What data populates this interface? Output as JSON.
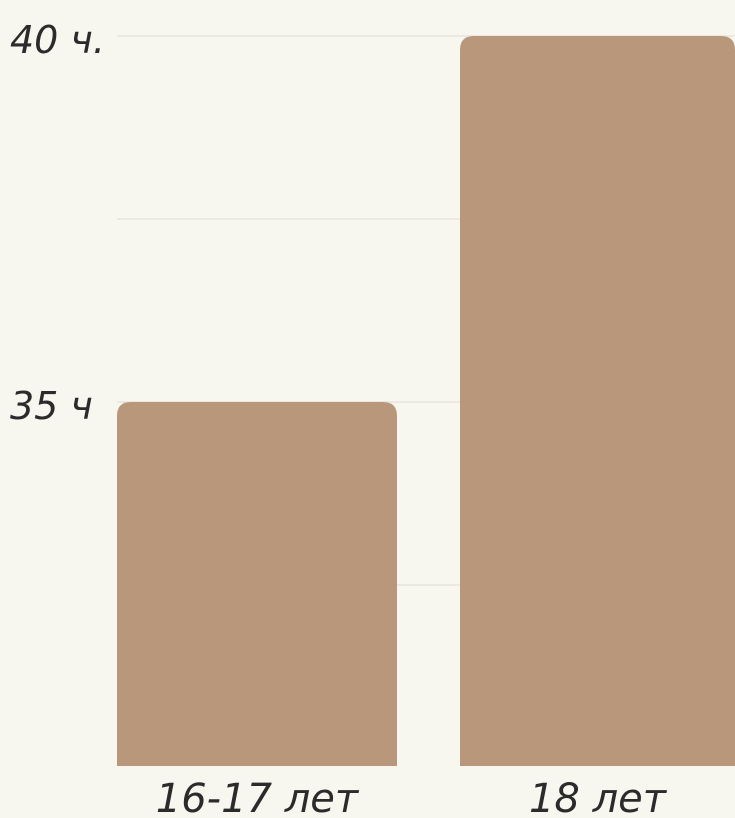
{
  "chart_data": {
    "type": "bar",
    "categories": [
      "16-17 лет",
      "18 лет"
    ],
    "values": [
      35,
      40
    ],
    "value_labels": [
      "35 ч",
      "40 ч."
    ],
    "title": "",
    "xlabel": "",
    "ylabel": "",
    "grid": true,
    "legend": "none"
  },
  "colors": {
    "background": "#f7f6ef",
    "bar": "#b9977b",
    "grid": "#ebe9e1",
    "text": "#2b2b2b"
  }
}
